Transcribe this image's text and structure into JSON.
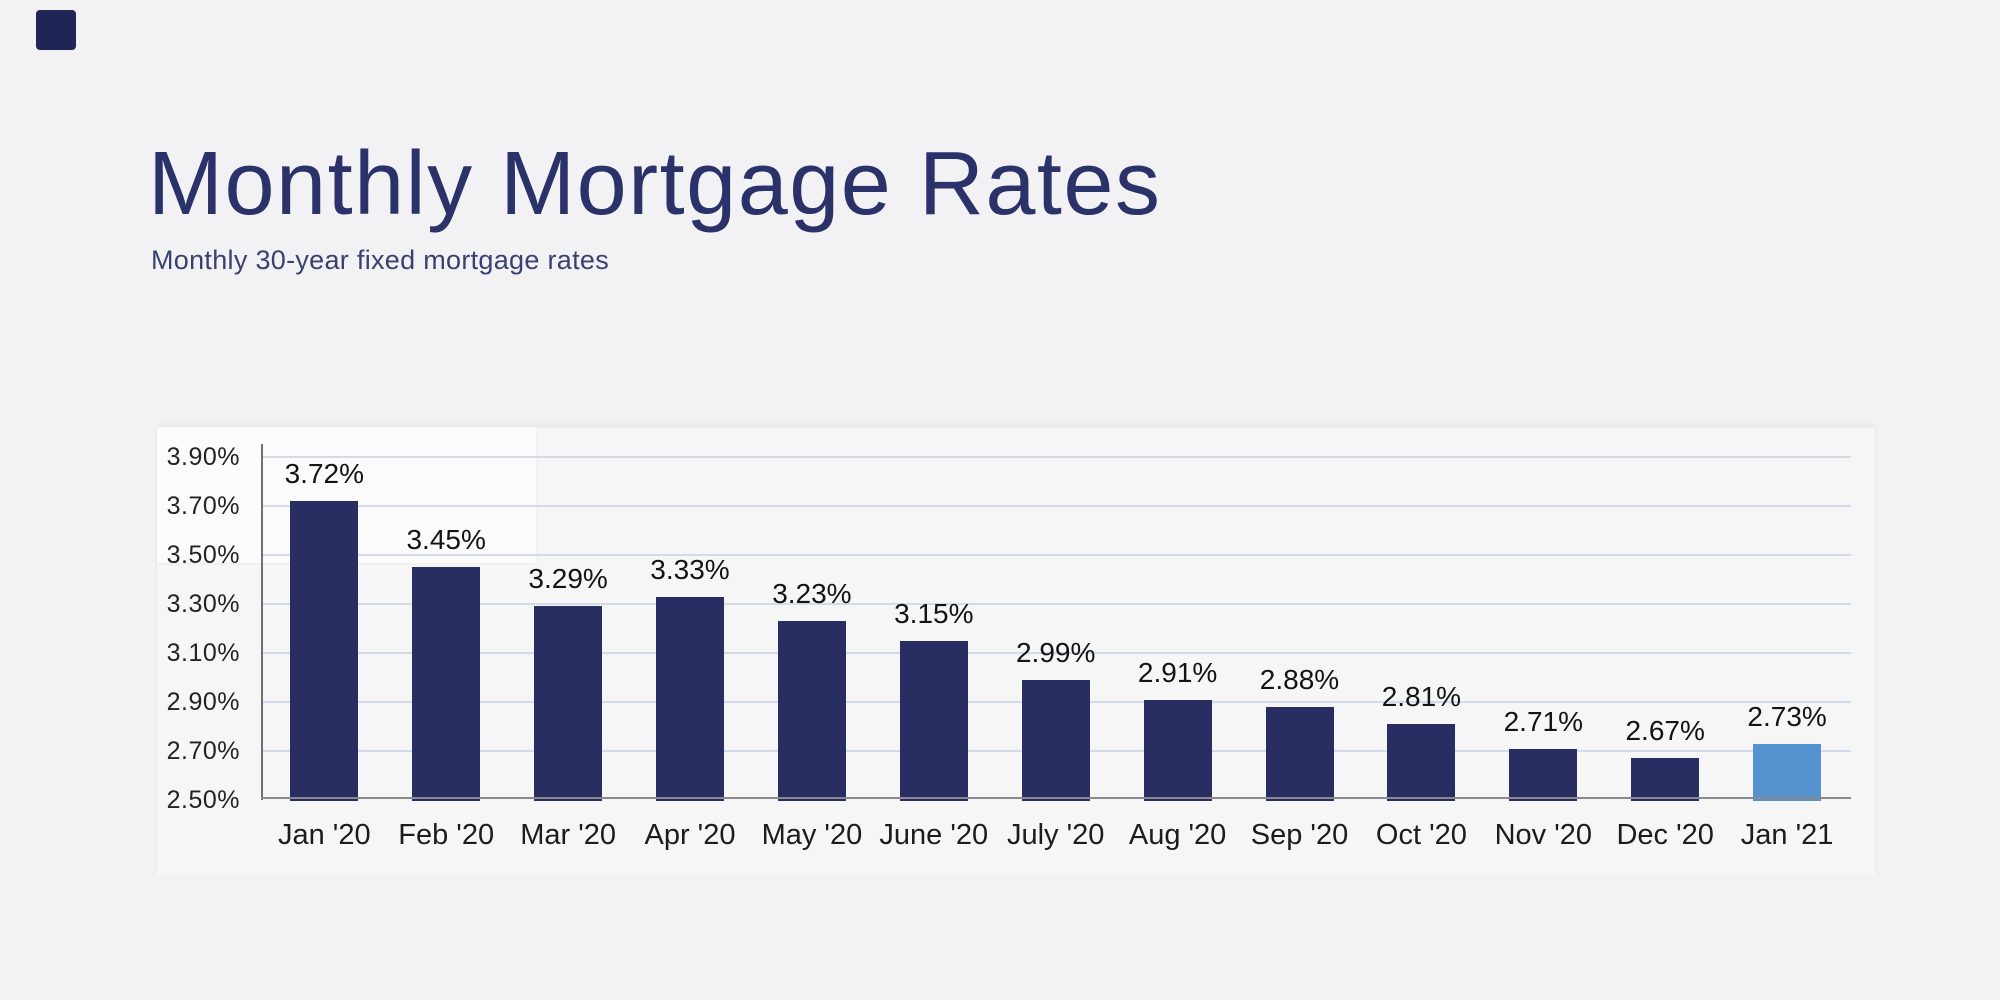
{
  "page": {
    "background": "#f2f2f4"
  },
  "brand": {
    "square_color": "#1f2554"
  },
  "header": {
    "title": "Monthly Mortgage Rates",
    "subtitle": "Monthly 30-year fixed mortgage rates"
  },
  "chart_data": {
    "type": "bar",
    "title": "Monthly Mortgage Rates",
    "subtitle": "Monthly 30-year fixed mortgage rates",
    "categories": [
      "Jan '20",
      "Feb '20",
      "Mar '20",
      "Apr '20",
      "May '20",
      "June '20",
      "July '20",
      "Aug '20",
      "Sep '20",
      "Oct '20",
      "Nov '20",
      "Dec '20",
      "Jan '21"
    ],
    "values": [
      3.72,
      3.45,
      3.29,
      3.33,
      3.23,
      3.15,
      2.99,
      2.91,
      2.88,
      2.81,
      2.71,
      2.67,
      2.73
    ],
    "value_labels": [
      "3.72%",
      "3.45%",
      "3.29%",
      "3.33%",
      "3.23%",
      "3.15%",
      "2.99%",
      "2.91%",
      "2.88%",
      "2.81%",
      "2.71%",
      "2.67%",
      "2.73%"
    ],
    "y_ticks": [
      "3.90%",
      "3.70%",
      "3.50%",
      "3.30%",
      "3.10%",
      "2.90%",
      "2.70%",
      "2.50%"
    ],
    "y_tick_values": [
      3.9,
      3.7,
      3.5,
      3.3,
      3.1,
      2.9,
      2.7,
      2.5
    ],
    "ylim": [
      2.5,
      3.9
    ],
    "xlabel": "",
    "ylabel": "",
    "grid": true,
    "legend": "none",
    "bar_color": "#292e62",
    "highlight_bar_color": "#5592d0",
    "highlight_index": 12
  }
}
